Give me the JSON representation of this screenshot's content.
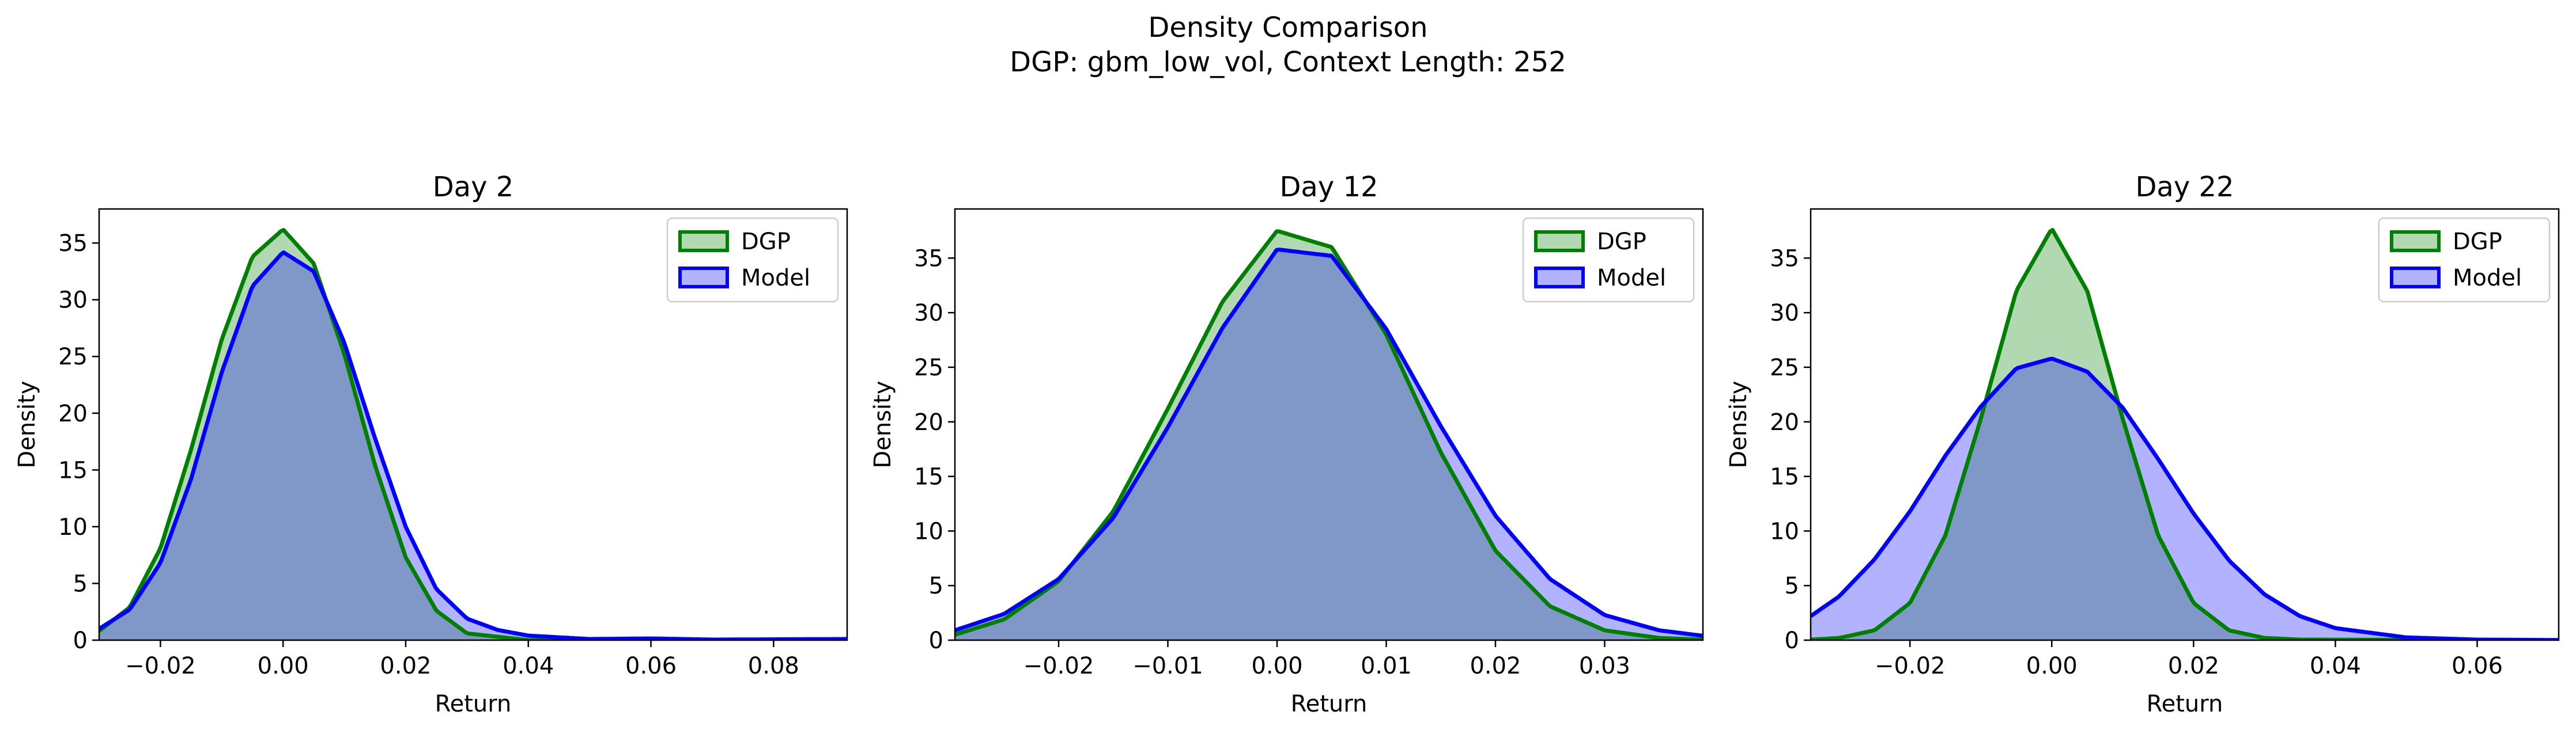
{
  "figure": {
    "title_line1": "Density Comparison",
    "title_line2": "DGP: gbm_low_vol, Context Length: 252"
  },
  "colors": {
    "dgp_line": "#008000",
    "dgp_fill": "#b2d8b2",
    "model_line": "#0000ff",
    "model_fill": "#b2b2ff",
    "overlap_fill": "#7f98c8"
  },
  "chart_data": [
    {
      "type": "area",
      "title": "Day 2",
      "xlabel": "Return",
      "ylabel": "Density",
      "xlim": [
        -0.03,
        0.092
      ],
      "ylim": [
        0,
        38
      ],
      "xticks": [
        -0.02,
        0.0,
        0.02,
        0.04,
        0.06,
        0.08
      ],
      "xtick_labels": [
        "−0.02",
        "0.00",
        "0.02",
        "0.04",
        "0.06",
        "0.08"
      ],
      "yticks": [
        0,
        5,
        10,
        15,
        20,
        25,
        30,
        35
      ],
      "ytick_labels": [
        "0",
        "5",
        "10",
        "15",
        "20",
        "25",
        "30",
        "35"
      ],
      "legend": {
        "position": "top-right",
        "entries": [
          "DGP",
          "Model"
        ]
      },
      "series": [
        {
          "name": "DGP",
          "x": [
            -0.03,
            -0.025,
            -0.02,
            -0.015,
            -0.01,
            -0.005,
            0.0,
            0.005,
            0.01,
            0.015,
            0.02,
            0.025,
            0.03,
            0.04,
            0.06,
            0.092
          ],
          "values": [
            0.8,
            2.9,
            8.1,
            16.8,
            26.5,
            33.8,
            36.2,
            33.2,
            25.2,
            15.4,
            7.3,
            2.6,
            0.6,
            0.0,
            0.0,
            0.0
          ]
        },
        {
          "name": "Model",
          "x": [
            -0.03,
            -0.025,
            -0.02,
            -0.015,
            -0.01,
            -0.005,
            0.0,
            0.005,
            0.01,
            0.015,
            0.02,
            0.025,
            0.03,
            0.035,
            0.04,
            0.05,
            0.06,
            0.07,
            0.092
          ],
          "values": [
            1.0,
            2.7,
            6.8,
            14.2,
            23.6,
            31.2,
            34.2,
            32.5,
            26.2,
            17.8,
            10.0,
            4.5,
            1.9,
            0.9,
            0.4,
            0.1,
            0.15,
            0.05,
            0.1
          ]
        }
      ]
    },
    {
      "type": "area",
      "title": "Day 12",
      "xlabel": "Return",
      "ylabel": "Density",
      "xlim": [
        -0.0295,
        0.039
      ],
      "ylim": [
        0,
        39.5
      ],
      "xticks": [
        -0.02,
        -0.01,
        0.0,
        0.01,
        0.02,
        0.03
      ],
      "xtick_labels": [
        "−0.02",
        "−0.01",
        "0.00",
        "0.01",
        "0.02",
        "0.03"
      ],
      "yticks": [
        0,
        5,
        10,
        15,
        20,
        25,
        30,
        35
      ],
      "ytick_labels": [
        "0",
        "5",
        "10",
        "15",
        "20",
        "25",
        "30",
        "35"
      ],
      "legend": {
        "position": "top-right",
        "entries": [
          "DGP",
          "Model"
        ]
      },
      "series": [
        {
          "name": "DGP",
          "x": [
            -0.0295,
            -0.025,
            -0.02,
            -0.015,
            -0.01,
            -0.005,
            0.0,
            0.005,
            0.01,
            0.015,
            0.02,
            0.025,
            0.03,
            0.035,
            0.039
          ],
          "values": [
            0.5,
            1.9,
            5.4,
            11.8,
            21.2,
            31.0,
            37.5,
            36.0,
            28.0,
            17.2,
            8.2,
            3.1,
            0.9,
            0.2,
            0.05
          ]
        },
        {
          "name": "Model",
          "x": [
            -0.0295,
            -0.025,
            -0.02,
            -0.015,
            -0.01,
            -0.005,
            0.0,
            0.005,
            0.01,
            0.015,
            0.02,
            0.025,
            0.03,
            0.035,
            0.039
          ],
          "values": [
            0.9,
            2.4,
            5.6,
            11.2,
            19.5,
            28.6,
            35.8,
            35.2,
            28.5,
            19.6,
            11.4,
            5.6,
            2.3,
            0.9,
            0.4
          ]
        }
      ]
    },
    {
      "type": "area",
      "title": "Day 22",
      "xlabel": "Return",
      "ylabel": "Density",
      "xlim": [
        -0.034,
        0.0715
      ],
      "ylim": [
        0,
        39.5
      ],
      "xticks": [
        -0.02,
        0.0,
        0.02,
        0.04,
        0.06
      ],
      "xtick_labels": [
        "−0.02",
        "0.00",
        "0.02",
        "0.04",
        "0.06"
      ],
      "yticks": [
        0,
        5,
        10,
        15,
        20,
        25,
        30,
        35
      ],
      "ytick_labels": [
        "0",
        "5",
        "10",
        "15",
        "20",
        "25",
        "30",
        "35"
      ],
      "legend": {
        "position": "top-right",
        "entries": [
          "DGP",
          "Model"
        ]
      },
      "series": [
        {
          "name": "DGP",
          "x": [
            -0.034,
            -0.03,
            -0.025,
            -0.02,
            -0.015,
            -0.01,
            -0.005,
            0.0,
            0.005,
            0.01,
            0.015,
            0.02,
            0.025,
            0.03,
            0.035,
            0.0715
          ],
          "values": [
            0.05,
            0.2,
            0.9,
            3.4,
            9.6,
            20.3,
            32.0,
            37.7,
            32.0,
            20.3,
            9.6,
            3.4,
            0.9,
            0.2,
            0.05,
            0.0
          ]
        },
        {
          "name": "Model",
          "x": [
            -0.034,
            -0.03,
            -0.025,
            -0.02,
            -0.015,
            -0.01,
            -0.005,
            0.0,
            0.005,
            0.01,
            0.015,
            0.02,
            0.025,
            0.03,
            0.035,
            0.04,
            0.05,
            0.06,
            0.0715
          ],
          "values": [
            2.2,
            4.0,
            7.4,
            11.8,
            16.9,
            21.4,
            24.9,
            25.8,
            24.6,
            21.3,
            16.6,
            11.6,
            7.3,
            4.2,
            2.2,
            1.1,
            0.25,
            0.05,
            0.01
          ]
        }
      ]
    }
  ]
}
